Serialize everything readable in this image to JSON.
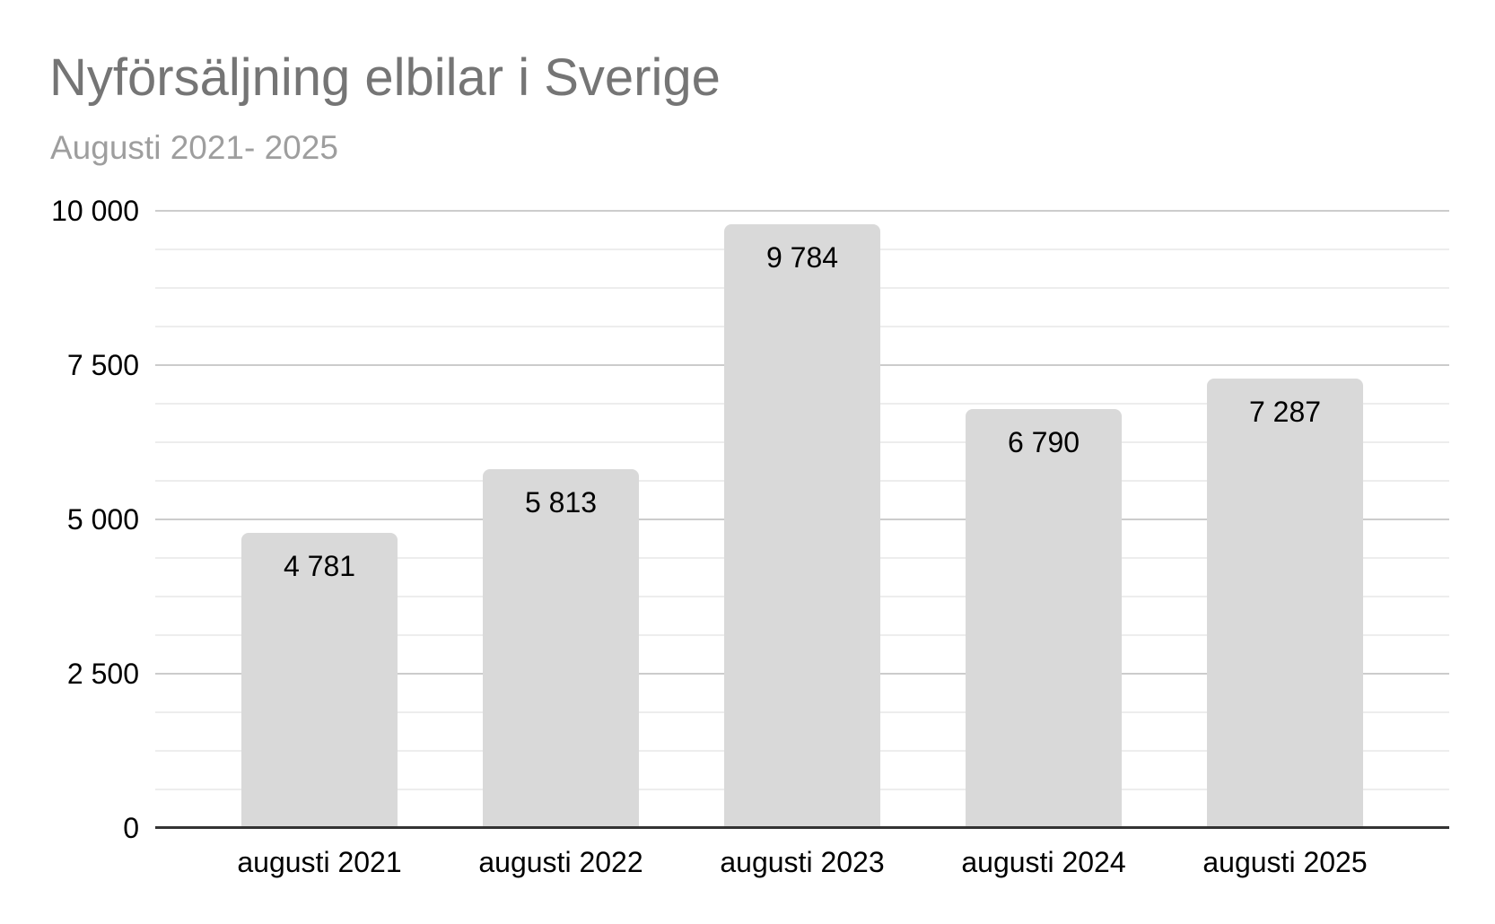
{
  "chart_data": {
    "type": "bar",
    "title": "Nyförsäljning elbilar i Sverige",
    "subtitle": "Augusti 2021- 2025",
    "categories": [
      "augusti 2021",
      "augusti 2022",
      "augusti 2023",
      "augusti 2024",
      "augusti 2025"
    ],
    "values": [
      4781,
      5813,
      9784,
      6790,
      7287
    ],
    "value_labels": [
      "4 781",
      "5 813",
      "9 784",
      "6 790",
      "7 287"
    ],
    "xlabel": "",
    "ylabel": "",
    "ylim": [
      0,
      10000
    ],
    "y_major_ticks": [
      0,
      2500,
      5000,
      7500,
      10000
    ],
    "y_tick_labels": [
      "0",
      "2 500",
      "5 000",
      "7 500",
      "10 000"
    ],
    "y_minor_step": 625,
    "grid": true,
    "legend_position": "none",
    "colors": {
      "bar": "#d9d9d9",
      "title": "#757575",
      "subtitle": "#9e9e9e",
      "tick_label": "#000000",
      "value_label": "#000000",
      "gridline_major": "#cccccc",
      "gridline_minor": "#ededed",
      "axis_line": "#333333",
      "background": "#ffffff"
    }
  }
}
